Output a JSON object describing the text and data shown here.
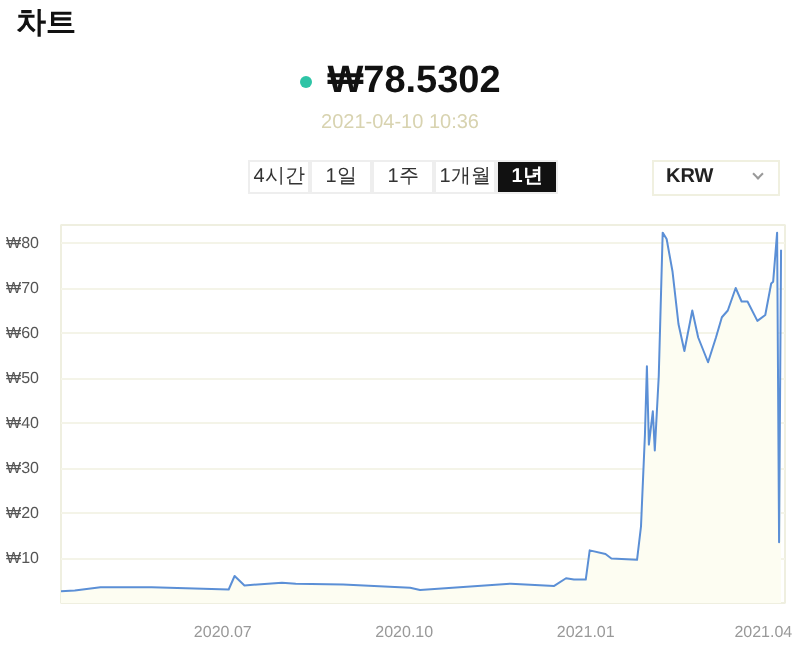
{
  "chart_data": {
    "type": "area",
    "title": "차트",
    "subtitle": "₩78.5302",
    "annotations": [
      "2021-04-10 10:36",
      "4시간",
      "1일",
      "1주",
      "1개월",
      "1년",
      "KRW"
    ],
    "x": [
      "2020-04-10",
      "2020-04-17",
      "2020-04-30",
      "2020-05-26",
      "2020-07-04",
      "2020-07-07",
      "2020-07-12",
      "2020-07-31",
      "2020-08-07",
      "2020-08-31",
      "2020-10-04",
      "2020-10-09",
      "2020-11-24",
      "2020-12-16",
      "2020-12-22",
      "2020-12-26",
      "2021-01-01",
      "2021-01-03",
      "2021-01-11",
      "2021-01-14",
      "2021-01-27",
      "2021-01-29",
      "2021-01-31",
      "2021-02-01",
      "2021-02-02",
      "2021-02-04",
      "2021-02-05",
      "2021-02-07",
      "2021-02-09",
      "2021-02-11",
      "2021-02-14",
      "2021-02-17",
      "2021-02-20",
      "2021-02-24",
      "2021-02-27",
      "2021-03-04",
      "2021-03-08",
      "2021-03-11",
      "2021-03-14",
      "2021-03-18",
      "2021-03-21",
      "2021-03-24",
      "2021-03-29",
      "2021-04-02",
      "2021-04-05",
      "2021-04-06",
      "2021-04-08",
      "2021-04-09",
      "2021-04-10"
    ],
    "series": [
      {
        "color": "#5b8fd6",
        "values": [
          2.6,
          2.8,
          3.5,
          3.5,
          3,
          6,
          3.9,
          4.5,
          4.3,
          4.1,
          3.4,
          2.9,
          4.3,
          3.8,
          5.5,
          5.2,
          5.2,
          11.7,
          10.9,
          9.9,
          9.6,
          17,
          37.4,
          52.6,
          35.2,
          42.6,
          33.9,
          50.4,
          82.3,
          80.9,
          73.6,
          62,
          56,
          65,
          59,
          53.5,
          59,
          63.5,
          65,
          70,
          67,
          67,
          62.7,
          64,
          71,
          71.4,
          82.3,
          13.5,
          78.5
        ]
      }
    ],
    "xlim": [
      "2020-04-10",
      "2021-04-12"
    ],
    "xticks": [
      {
        "value": "2020-07-01",
        "label": "2020.07"
      },
      {
        "value": "2020-10-01",
        "label": "2020.10"
      },
      {
        "value": "2021-01-01",
        "label": "2021.01"
      },
      {
        "value": "2021-04-01",
        "label": "2021.04"
      }
    ],
    "ylim": [
      0,
      84
    ],
    "yticks": [
      {
        "value": 10,
        "label": "₩10"
      },
      {
        "value": 20,
        "label": "₩20"
      },
      {
        "value": 30,
        "label": "₩30"
      },
      {
        "value": 40,
        "label": "₩40"
      },
      {
        "value": 50,
        "label": "₩50"
      },
      {
        "value": 60,
        "label": "₩60"
      },
      {
        "value": 70,
        "label": "₩70"
      },
      {
        "value": 80,
        "label": "₩80"
      }
    ],
    "grid": "y"
  }
}
